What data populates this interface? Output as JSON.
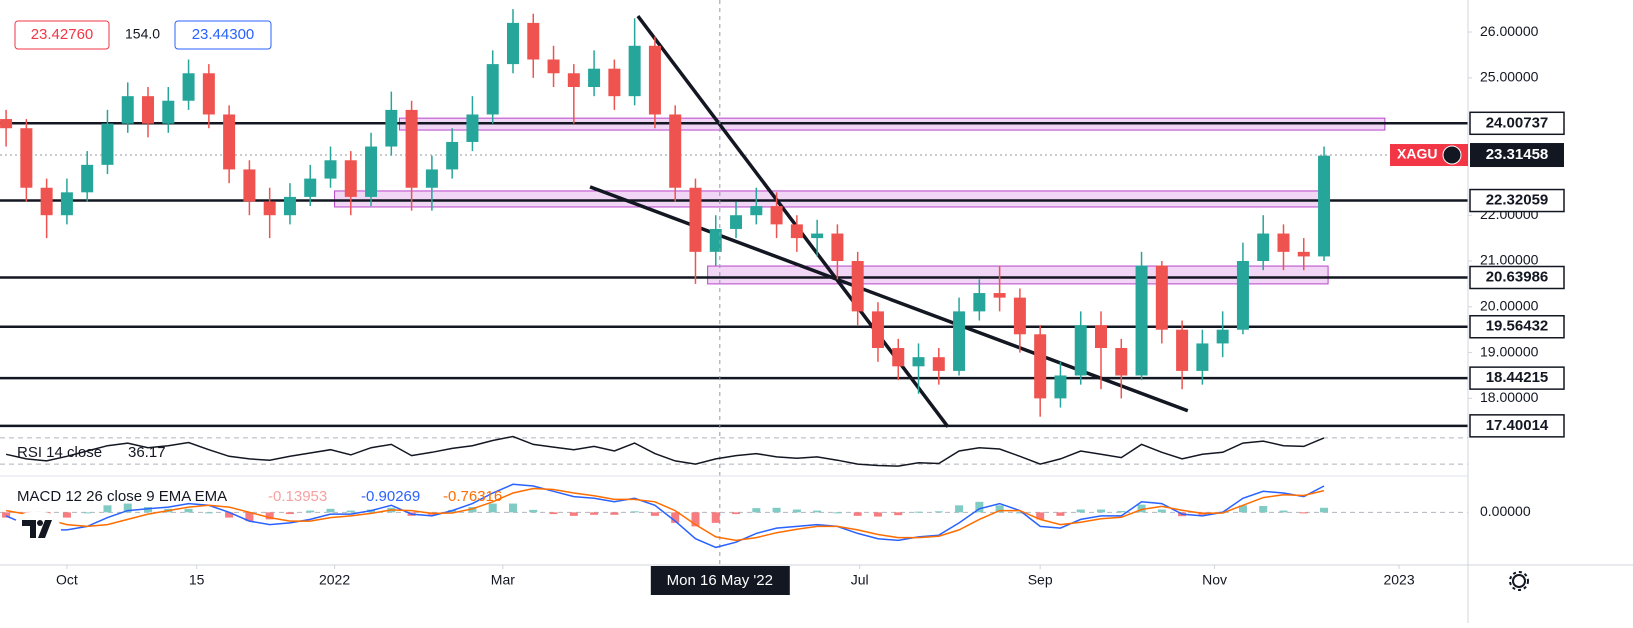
{
  "header": {
    "sell_price": "23.42760",
    "spread": "154.0",
    "buy_price": "23.44300"
  },
  "chart_data": [
    {
      "type": "candlestick",
      "symbol_label": "XAGU",
      "xlim": [
        -0.3,
        72.1
      ],
      "xticks": [
        {
          "value": 3,
          "label": "Oct"
        },
        {
          "value": 9.4,
          "label": "15"
        },
        {
          "value": 16.2,
          "label": "2022"
        },
        {
          "value": 24.5,
          "label": "Mar"
        },
        {
          "value": 42.1,
          "label": "Jul"
        },
        {
          "value": 51,
          "label": "Sep"
        },
        {
          "value": 59.6,
          "label": "Nov"
        },
        {
          "value": 68.7,
          "label": "2023"
        }
      ],
      "crosshair": {
        "value": 35.2,
        "label": "Mon 16 May '22"
      },
      "ylim": [
        17.375,
        26.7
      ],
      "yticks": [
        {
          "value": 26,
          "label": "26.00000"
        },
        {
          "value": 25,
          "label": "25.00000"
        },
        {
          "value": 22,
          "label": "22.00000"
        },
        {
          "value": 21,
          "label": "21.00000"
        },
        {
          "value": 20,
          "label": "20.00000"
        },
        {
          "value": 19,
          "label": "19.00000"
        },
        {
          "value": 18,
          "label": "18.00000"
        }
      ],
      "up_color": "#26a69a",
      "down_color": "#ef5350",
      "open": [
        24.1,
        23.9,
        22.6,
        22.0,
        22.5,
        23.1,
        24.0,
        24.6,
        24.0,
        24.5,
        25.1,
        24.2,
        23.0,
        22.3,
        22.0,
        22.4,
        22.8,
        23.2,
        22.4,
        23.5,
        24.3,
        22.6,
        23.0,
        23.6,
        24.2,
        25.3,
        26.2,
        25.4,
        25.1,
        24.8,
        25.2,
        24.6,
        25.7,
        24.2,
        22.6,
        21.2,
        21.7,
        22.0,
        22.2,
        21.8,
        21.5,
        21.6,
        21.0,
        19.9,
        19.1,
        18.7,
        18.9,
        18.6,
        19.9,
        20.3,
        20.2,
        19.4,
        18.0,
        18.5,
        19.6,
        19.1,
        18.5,
        20.9,
        19.5,
        18.6,
        19.2,
        19.5,
        21.0,
        21.6,
        21.2,
        21.1
      ],
      "high": [
        24.3,
        24.1,
        22.8,
        22.8,
        23.4,
        24.3,
        24.9,
        24.8,
        24.8,
        25.4,
        25.3,
        24.4,
        23.2,
        22.6,
        22.7,
        23.1,
        23.5,
        23.4,
        23.8,
        24.7,
        24.5,
        23.3,
        23.9,
        24.6,
        25.6,
        26.5,
        26.4,
        25.7,
        25.3,
        25.6,
        25.4,
        26.3,
        25.9,
        24.4,
        22.8,
        22.0,
        22.3,
        22.6,
        22.5,
        22.0,
        21.9,
        21.8,
        21.2,
        20.1,
        19.3,
        19.2,
        19.1,
        20.2,
        20.6,
        20.9,
        20.4,
        19.6,
        18.8,
        19.9,
        19.9,
        19.3,
        21.2,
        21.0,
        19.7,
        19.5,
        19.9,
        21.4,
        22.0,
        21.8,
        21.5,
        23.5
      ],
      "low": [
        23.5,
        22.3,
        21.5,
        21.8,
        22.3,
        22.9,
        23.8,
        23.7,
        23.8,
        24.3,
        23.9,
        22.7,
        22.0,
        21.5,
        21.8,
        22.2,
        22.6,
        22.0,
        22.2,
        23.3,
        22.1,
        22.1,
        22.8,
        23.4,
        24.0,
        25.1,
        25.0,
        24.8,
        24.0,
        24.6,
        24.3,
        24.4,
        23.9,
        22.3,
        20.5,
        20.9,
        21.5,
        21.8,
        21.5,
        21.2,
        21.1,
        20.6,
        19.6,
        18.8,
        18.4,
        18.1,
        18.3,
        18.5,
        19.7,
        19.9,
        19.0,
        17.6,
        17.8,
        18.3,
        18.2,
        18.0,
        18.4,
        19.2,
        18.2,
        18.3,
        18.9,
        19.4,
        20.8,
        20.8,
        20.8,
        21.0
      ],
      "close": [
        23.9,
        22.6,
        22.0,
        22.5,
        23.1,
        24.0,
        24.6,
        24.0,
        24.5,
        25.1,
        24.2,
        23.0,
        22.3,
        22.0,
        22.4,
        22.8,
        23.2,
        22.4,
        23.5,
        24.3,
        22.6,
        23.0,
        23.6,
        24.2,
        25.3,
        26.2,
        25.4,
        25.1,
        24.8,
        25.2,
        24.6,
        25.7,
        24.2,
        22.6,
        21.2,
        21.7,
        22.0,
        22.2,
        21.8,
        21.5,
        21.6,
        21.0,
        19.9,
        19.1,
        18.7,
        18.9,
        18.6,
        19.9,
        20.3,
        20.2,
        19.4,
        18.0,
        18.5,
        19.6,
        19.1,
        18.5,
        20.9,
        19.5,
        18.6,
        19.2,
        19.5,
        21.0,
        21.6,
        21.2,
        21.1,
        23.3
      ],
      "last_price": 23.31458,
      "levels": [
        24.00737,
        22.32059,
        20.63986,
        19.56432,
        18.44215,
        17.40014
      ],
      "zones": [
        {
          "x": [
            19.4,
            68.0
          ],
          "y": [
            23.86,
            24.12
          ]
        },
        {
          "x": [
            16.2,
            64.9
          ],
          "y": [
            22.18,
            22.53
          ]
        },
        {
          "x": [
            34.6,
            65.2
          ],
          "y": [
            20.5,
            20.89
          ]
        }
      ],
      "trendlines": [
        {
          "x": [
            31.16,
            46.45
          ],
          "y": [
            26.35,
            17.38
          ]
        },
        {
          "x": [
            28.8,
            58.28
          ],
          "y": [
            22.62,
            17.73
          ]
        }
      ]
    },
    {
      "type": "line",
      "label": "RSI 14 close",
      "value_label": "36.17",
      "ylim": [
        15,
        85
      ],
      "levels": [
        70,
        30
      ],
      "color": "#131722",
      "values": [
        45,
        38,
        35,
        42,
        50,
        58,
        62,
        55,
        58,
        63,
        52,
        42,
        38,
        36,
        42,
        47,
        52,
        44,
        55,
        60,
        43,
        48,
        54,
        58,
        66,
        72,
        60,
        56,
        52,
        57,
        50,
        62,
        46,
        35,
        30,
        38,
        43,
        46,
        41,
        39,
        41,
        36,
        30,
        28,
        27,
        32,
        31,
        50,
        55,
        53,
        42,
        30,
        38,
        50,
        45,
        40,
        60,
        48,
        38,
        45,
        48,
        62,
        65,
        58,
        57,
        70
      ]
    },
    {
      "type": "macd",
      "label": "MACD 12 26 close 9 EMA EMA",
      "histogram_label": "-0.13953",
      "macd_label": "-0.90269",
      "signal_label": "-0.76316",
      "ylim": [
        -1.5,
        0.95
      ],
      "yticks": [
        {
          "value": 0,
          "label": "0.00000"
        }
      ],
      "macd_color": "#2962ff",
      "signal_color": "#ff6d00",
      "macd": [
        -0.1,
        -0.35,
        -0.5,
        -0.5,
        -0.4,
        -0.15,
        0.05,
        0.1,
        0.15,
        0.25,
        0.2,
        0.0,
        -0.25,
        -0.35,
        -0.3,
        -0.2,
        -0.05,
        -0.05,
        0.05,
        0.2,
        -0.05,
        -0.1,
        0.05,
        0.25,
        0.55,
        0.8,
        0.75,
        0.6,
        0.45,
        0.4,
        0.3,
        0.4,
        0.2,
        -0.25,
        -0.75,
        -1.0,
        -0.85,
        -0.6,
        -0.45,
        -0.4,
        -0.35,
        -0.4,
        -0.6,
        -0.75,
        -0.8,
        -0.7,
        -0.65,
        -0.3,
        0.1,
        0.25,
        0.05,
        -0.4,
        -0.45,
        -0.2,
        -0.1,
        -0.1,
        0.3,
        0.25,
        -0.05,
        -0.1,
        0.0,
        0.4,
        0.6,
        0.55,
        0.45,
        0.75
      ],
      "signal": [
        0.05,
        -0.05,
        -0.2,
        -0.35,
        -0.4,
        -0.35,
        -0.2,
        -0.05,
        0.05,
        0.15,
        0.2,
        0.15,
        0.0,
        -0.15,
        -0.25,
        -0.25,
        -0.15,
        -0.1,
        -0.03,
        0.07,
        0.05,
        -0.03,
        -0.02,
        0.1,
        0.3,
        0.55,
        0.68,
        0.65,
        0.55,
        0.47,
        0.37,
        0.37,
        0.3,
        0.05,
        -0.35,
        -0.7,
        -0.8,
        -0.72,
        -0.58,
        -0.48,
        -0.4,
        -0.4,
        -0.5,
        -0.63,
        -0.72,
        -0.72,
        -0.68,
        -0.5,
        -0.2,
        0.05,
        0.05,
        -0.2,
        -0.35,
        -0.28,
        -0.18,
        -0.14,
        0.08,
        0.17,
        0.06,
        -0.03,
        -0.02,
        0.2,
        0.42,
        0.5,
        0.48,
        0.62
      ],
      "histogram": [
        -0.15,
        -0.3,
        -0.3,
        -0.15,
        0,
        0.2,
        0.25,
        0.15,
        0.1,
        0.1,
        0,
        -0.15,
        -0.25,
        -0.2,
        -0.05,
        0.05,
        0.1,
        0.05,
        0.08,
        0.13,
        -0.1,
        -0.07,
        0.07,
        0.15,
        0.25,
        0.25,
        0.07,
        -0.05,
        -0.1,
        -0.07,
        -0.07,
        0.03,
        -0.1,
        -0.3,
        -0.4,
        -0.3,
        -0.05,
        0.12,
        0.13,
        0.08,
        0.05,
        0,
        -0.1,
        -0.12,
        -0.08,
        0.02,
        0.03,
        0.2,
        0.3,
        0.2,
        0,
        -0.2,
        -0.1,
        0.08,
        0.08,
        0.04,
        0.22,
        0.08,
        -0.11,
        -0.07,
        0.02,
        0.2,
        0.18,
        0.05,
        -0.03,
        0.13
      ]
    }
  ]
}
